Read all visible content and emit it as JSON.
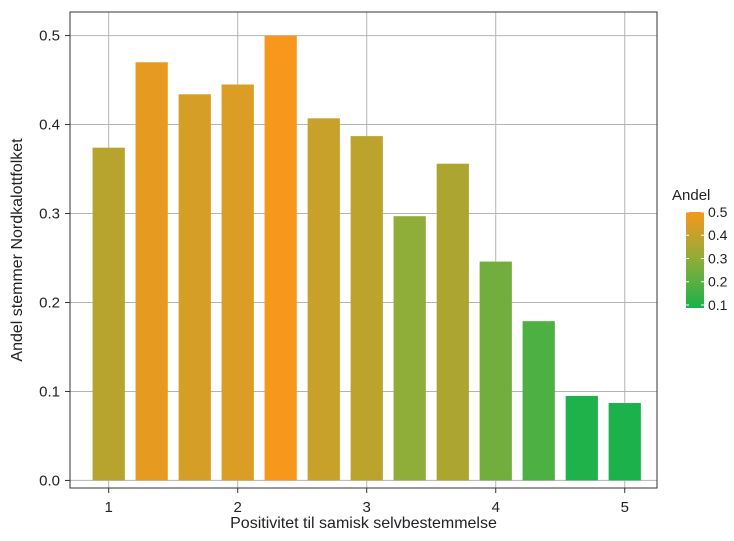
{
  "chart_data": {
    "type": "bar",
    "xlabel": "Positivitet til samisk selvbestemmelse",
    "ylabel": "Andel stemmer Nordkalottfolket",
    "xlim": [
      0.7,
      5.25
    ],
    "ylim": [
      -0.0085,
      0.5265
    ],
    "x_ticks": [
      1,
      2,
      3,
      4,
      5
    ],
    "y_ticks": [
      0.0,
      0.1,
      0.2,
      0.3,
      0.4,
      0.5
    ],
    "y_tick_labels": [
      "0.0",
      "0.1",
      "0.2",
      "0.3",
      "0.4",
      "0.5"
    ],
    "bar_width": 0.25,
    "grid": true,
    "bars": [
      {
        "x": 1.0,
        "value": 0.374
      },
      {
        "x": 1.333,
        "value": 0.47
      },
      {
        "x": 1.667,
        "value": 0.434
      },
      {
        "x": 2.0,
        "value": 0.445
      },
      {
        "x": 2.333,
        "value": 0.5
      },
      {
        "x": 2.667,
        "value": 0.407
      },
      {
        "x": 3.0,
        "value": 0.387
      },
      {
        "x": 3.333,
        "value": 0.297
      },
      {
        "x": 3.667,
        "value": 0.356
      },
      {
        "x": 4.0,
        "value": 0.246
      },
      {
        "x": 4.333,
        "value": 0.179
      },
      {
        "x": 4.667,
        "value": 0.095
      },
      {
        "x": 5.0,
        "value": 0.087
      }
    ],
    "legend": {
      "title": "Andel",
      "position": "right",
      "labels": [
        "0.5",
        "0.4",
        "0.3",
        "0.2",
        "0.1"
      ],
      "values": [
        0.5,
        0.4,
        0.3,
        0.2,
        0.1
      ],
      "range": [
        0.087,
        0.5
      ]
    },
    "colors": {
      "low": "#1bb24b",
      "high": "#f7971c",
      "grid": "#b5b5b5",
      "panel_border": "#333333"
    }
  }
}
